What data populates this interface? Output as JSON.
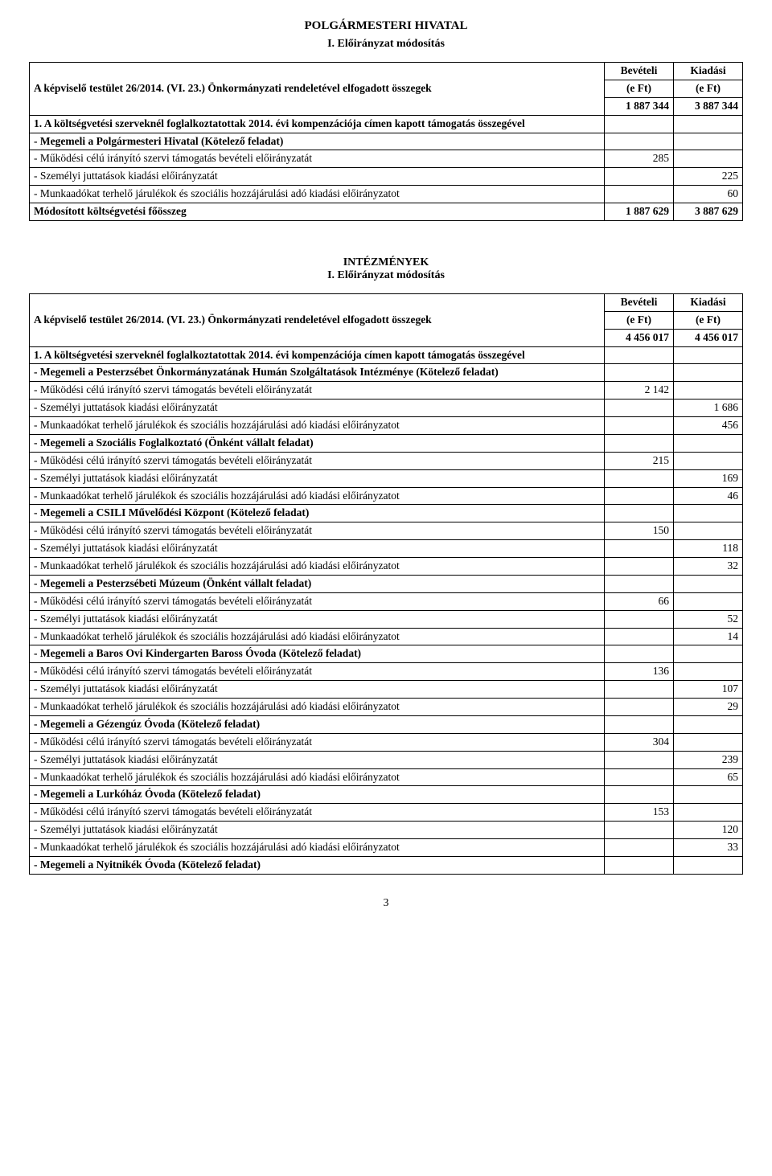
{
  "page_title": "POLGÁRMESTERI HIVATAL",
  "section_numbered": "I. Előirányzat módosítás",
  "col_headers": {
    "bevetel": "Bevételi",
    "kiadas": "Kiadási",
    "eft": "(e Ft)"
  },
  "decree_label": "A képviselő testület 26/2014. (VI. 23.) Önkormányzati rendeletével elfogadott összegek",
  "table_ph": {
    "start": {
      "bevetel": "1 887 344",
      "kiadas": "3 887 344"
    },
    "rows": [
      {
        "label": "1.  A költségvetési szerveknél foglalkoztatottak 2014. évi kompenzációja címen kapott támogatás összegével",
        "bold": true,
        "justify": true,
        "b": "",
        "k": ""
      },
      {
        "label": " - Megemeli a Polgármesteri Hivatal (Kötelező feladat)",
        "bold": true,
        "b": "",
        "k": ""
      },
      {
        "label": "   - Működési célú irányító szervi támogatás bevételi előirányzatát",
        "b": "285",
        "k": ""
      },
      {
        "label": "   - Személyi juttatások kiadási előirányzatát",
        "b": "",
        "k": "225"
      },
      {
        "label": "   - Munkaadókat terhelő járulékok és szociális hozzájárulási adó kiadási előirányzatot",
        "b": "",
        "k": "60"
      }
    ],
    "total": {
      "label": "Módosított költségvetési főösszeg",
      "b": "1 887 629",
      "k": "3 887 629"
    }
  },
  "intezmenyek_title": "INTÉZMÉNYEK",
  "intezmenyek_sub": "I. Előirányzat módosítás",
  "table_int": {
    "start": {
      "bevetel": "4 456 017",
      "kiadas": "4 456 017"
    },
    "rows": [
      {
        "label": "1.  A költségvetési szerveknél foglalkoztatottak 2014. évi kompenzációja címen kapott támogatás összegével",
        "bold": true,
        "justify": true,
        "b": "",
        "k": ""
      },
      {
        "label": " - Megemeli a Pesterzsébet Önkormányzatának Humán Szolgáltatások Intézménye (Kötelező feladat)",
        "bold": true,
        "justify": true,
        "b": "",
        "k": ""
      },
      {
        "label": "   - Működési célú irányító szervi támogatás bevételi előirányzatát",
        "b": "2 142",
        "k": ""
      },
      {
        "label": "   - Személyi juttatások kiadási előirányzatát",
        "b": "",
        "k": "1 686"
      },
      {
        "label": "   - Munkaadókat terhelő járulékok és szociális hozzájárulási adó kiadási előirányzatot",
        "b": "",
        "k": "456"
      },
      {
        "label": " - Megemeli a Szociális Foglalkoztató (Önként vállalt feladat)",
        "bold": true,
        "b": "",
        "k": ""
      },
      {
        "label": "   - Működési célú irányító szervi támogatás bevételi előirányzatát",
        "b": "215",
        "k": ""
      },
      {
        "label": "   - Személyi juttatások kiadási előirányzatát",
        "b": "",
        "k": "169"
      },
      {
        "label": "   - Munkaadókat terhelő járulékok és szociális hozzájárulási adó kiadási előirányzatot",
        "b": "",
        "k": "46"
      },
      {
        "label": " - Megemeli a CSILI Művelődési Központ (Kötelező feladat)",
        "bold": true,
        "b": "",
        "k": ""
      },
      {
        "label": "   - Működési célú irányító szervi támogatás bevételi előirányzatát",
        "b": "150",
        "k": ""
      },
      {
        "label": "   - Személyi juttatások kiadási előirányzatát",
        "b": "",
        "k": "118"
      },
      {
        "label": "   - Munkaadókat terhelő járulékok és szociális hozzájárulási adó kiadási előirányzatot",
        "b": "",
        "k": "32"
      },
      {
        "label": " - Megemeli a Pesterzsébeti Múzeum (Önként vállalt feladat)",
        "bold": true,
        "b": "",
        "k": ""
      },
      {
        "label": "   - Működési célú irányító szervi támogatás bevételi előirányzatát",
        "b": "66",
        "k": ""
      },
      {
        "label": "   - Személyi juttatások kiadási előirányzatát",
        "b": "",
        "k": "52"
      },
      {
        "label": "   - Munkaadókat terhelő járulékok és szociális hozzájárulási adó kiadási előirányzatot",
        "b": "",
        "k": "14"
      },
      {
        "label": " - Megemeli a Baros Ovi Kindergarten Baross Óvoda (Kötelező feladat)",
        "bold": true,
        "b": "",
        "k": ""
      },
      {
        "label": "   - Működési célú irányító szervi támogatás bevételi előirányzatát",
        "b": "136",
        "k": ""
      },
      {
        "label": "   - Személyi juttatások kiadási előirányzatát",
        "b": "",
        "k": "107"
      },
      {
        "label": "   - Munkaadókat terhelő járulékok és szociális hozzájárulási adó kiadási előirányzatot",
        "b": "",
        "k": "29"
      },
      {
        "label": " - Megemeli a Gézengúz Óvoda (Kötelező feladat)",
        "bold": true,
        "b": "",
        "k": ""
      },
      {
        "label": "   - Működési célú irányító szervi támogatás bevételi előirányzatát",
        "b": "304",
        "k": ""
      },
      {
        "label": "   - Személyi juttatások kiadási előirányzatát",
        "b": "",
        "k": "239"
      },
      {
        "label": "   - Munkaadókat terhelő járulékok és szociális hozzájárulási adó kiadási előirányzatot",
        "b": "",
        "k": "65"
      },
      {
        "label": " - Megemeli a Lurkóház Óvoda (Kötelező feladat)",
        "bold": true,
        "b": "",
        "k": ""
      },
      {
        "label": "   - Működési célú irányító szervi támogatás bevételi előirányzatát",
        "b": "153",
        "k": ""
      },
      {
        "label": "   - Személyi juttatások kiadási előirányzatát",
        "b": "",
        "k": "120"
      },
      {
        "label": "   - Munkaadókat terhelő járulékok és szociális hozzájárulási adó kiadási előirányzatot",
        "b": "",
        "k": "33"
      },
      {
        "label": " - Megemeli a Nyitnikék Óvoda (Kötelező feladat)",
        "bold": true,
        "b": "",
        "k": ""
      }
    ]
  },
  "page_number": "3"
}
